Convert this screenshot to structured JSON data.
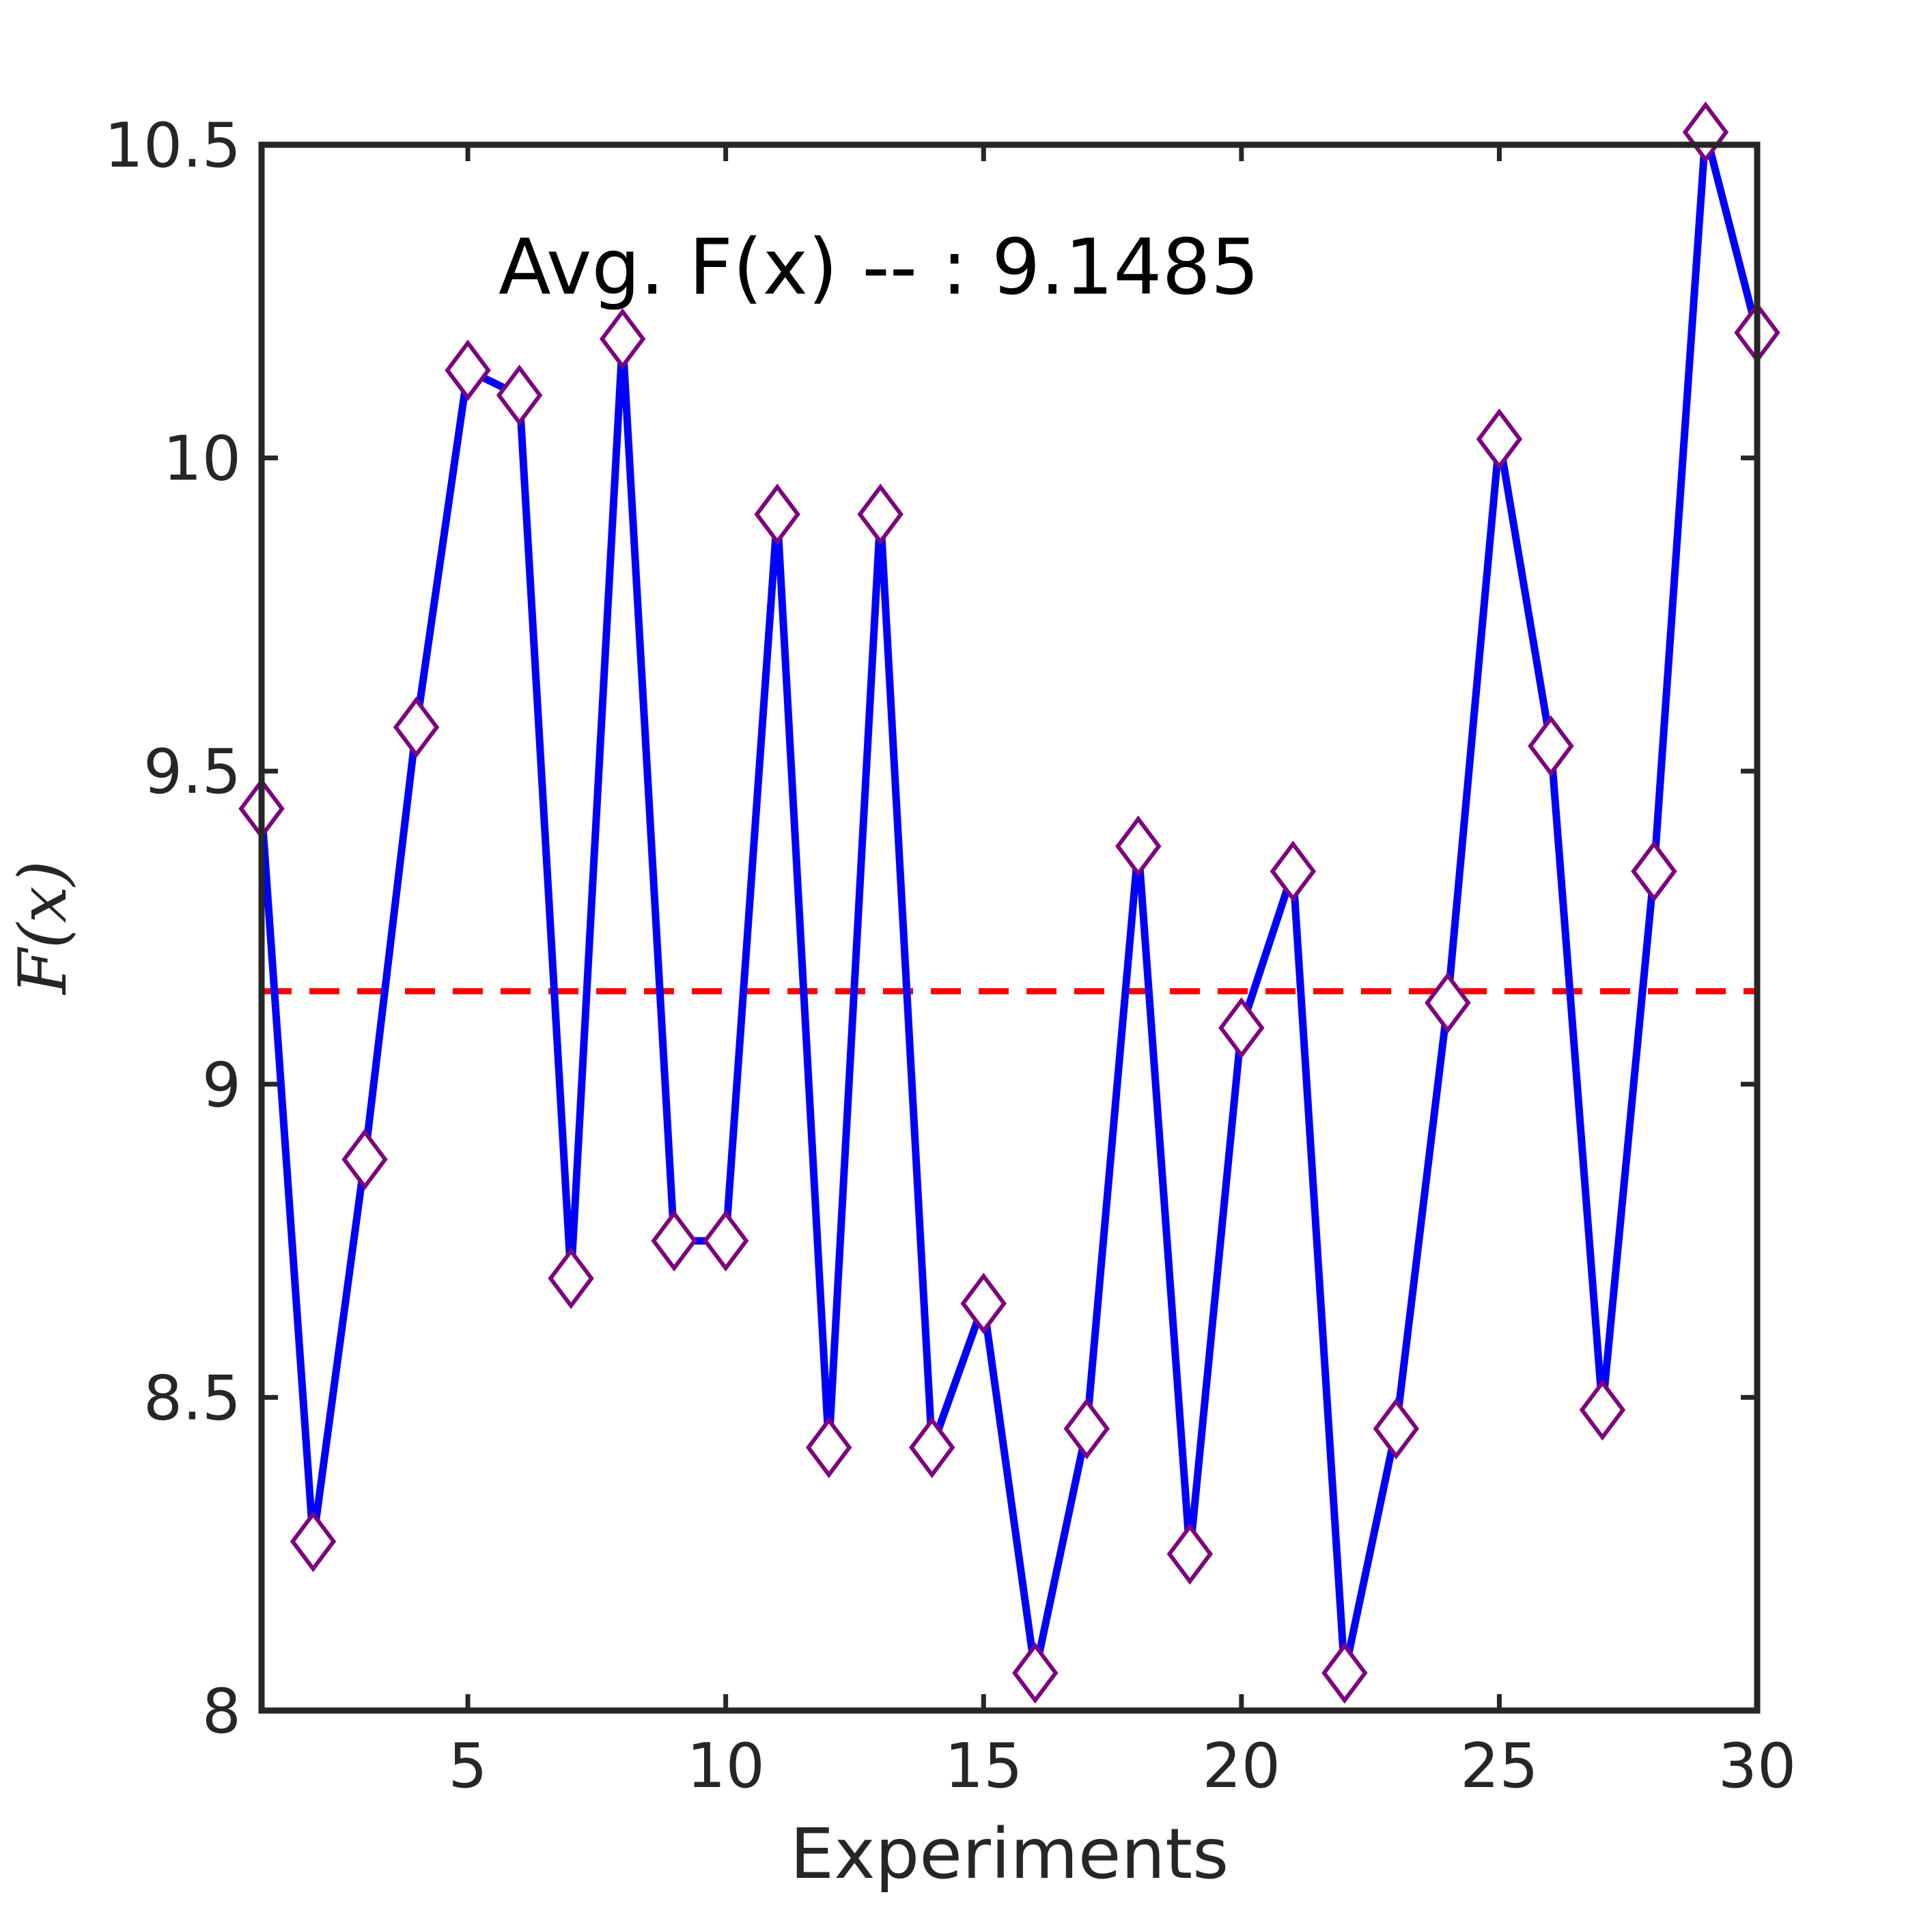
{
  "chart_data": {
    "type": "line",
    "title": "",
    "xlabel": "Experiments",
    "ylabel": "F(x)",
    "xlim": [
      1,
      30
    ],
    "ylim": [
      8,
      10.5
    ],
    "x_ticks": [
      5,
      10,
      15,
      20,
      25,
      30
    ],
    "y_ticks": [
      8,
      8.5,
      9,
      9.5,
      10,
      10.5
    ],
    "y_tick_labels": [
      "8",
      "8.5",
      "9",
      "9.5",
      "10",
      "10.5"
    ],
    "grid": false,
    "annotation": "Avg. F(x) -- : 9.1485",
    "average": 9.1485,
    "x": [
      1,
      2,
      3,
      4,
      5,
      6,
      7,
      8,
      9,
      10,
      11,
      12,
      13,
      14,
      15,
      16,
      17,
      18,
      19,
      20,
      21,
      22,
      23,
      24,
      25,
      26,
      27,
      28,
      29,
      30
    ],
    "values": [
      9.44,
      8.27,
      8.88,
      9.57,
      10.14,
      10.1,
      8.69,
      10.19,
      8.75,
      8.75,
      9.91,
      8.42,
      9.91,
      8.42,
      8.65,
      8.06,
      8.45,
      9.38,
      8.25,
      9.09,
      9.34,
      8.06,
      8.45,
      9.13,
      10.03,
      9.54,
      8.48,
      9.34,
      10.52,
      10.2
    ],
    "colors": {
      "line": "#0000ff",
      "marker": "#7e057e",
      "average_line": "#ff0000",
      "axes": "#262626"
    }
  }
}
